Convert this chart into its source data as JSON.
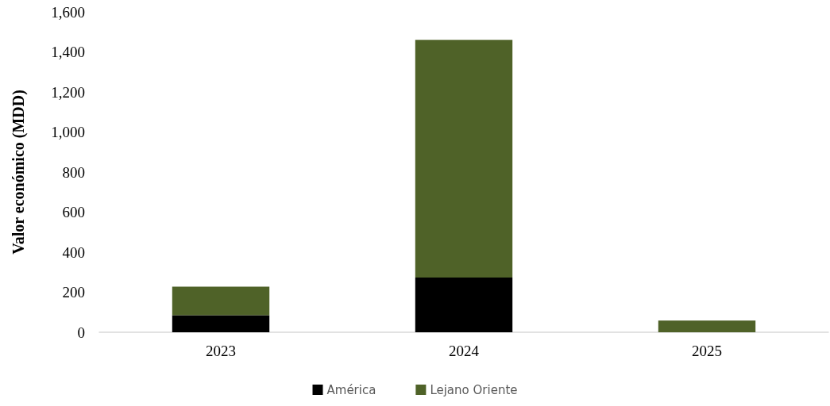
{
  "chart_data": {
    "type": "bar",
    "ylabel": "Valor económico (MDD)",
    "categories": [
      "2023",
      "2024",
      "2025"
    ],
    "stacked": true,
    "series": [
      {
        "name": "América",
        "color": "#000000",
        "values": [
          85,
          273,
          0
        ]
      },
      {
        "name": "Lejano Oriente",
        "color": "#4f6228",
        "values": [
          143,
          1187,
          58
        ]
      }
    ],
    "ylim": [
      0,
      1600
    ],
    "yticks": [
      0,
      200,
      400,
      600,
      800,
      {
        "value": 1000,
        "label": "1,000"
      },
      {
        "value": 1200,
        "label": "1,200"
      },
      {
        "value": 1400,
        "label": "1,400"
      },
      {
        "value": 1600,
        "label": "1,600"
      }
    ],
    "grid": false,
    "legend": "bottom"
  }
}
